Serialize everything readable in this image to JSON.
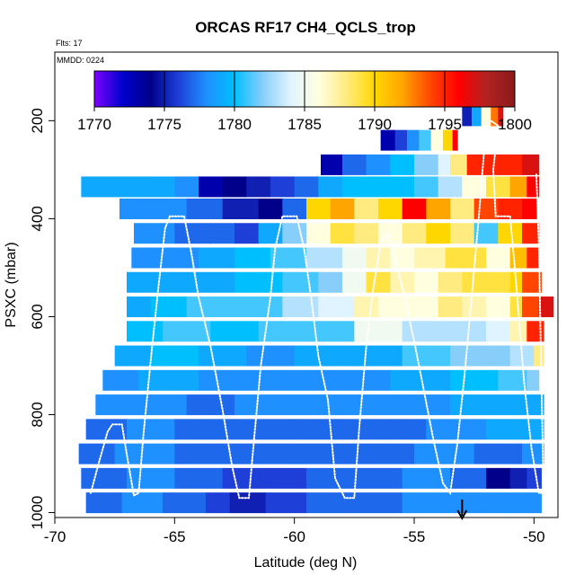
{
  "chart_data": {
    "type": "heatmap",
    "title": "ORCAS RF17 CH4_QCLS_trop",
    "subtitle_flights": "Flts: 17",
    "subtitle_date": "MMDD: 0224",
    "xlabel": "Latitude (deg N)",
    "ylabel": "PSXC (mbar)",
    "xlim": [
      -70,
      -49
    ],
    "ylim": [
      1010,
      60
    ],
    "x_ticks": [
      -70,
      -65,
      -60,
      -55,
      -50
    ],
    "x_tick_labels": [
      "-70",
      "-65",
      "-60",
      "-55",
      "-50"
    ],
    "y_ticks": [
      200,
      400,
      600,
      800,
      1000
    ],
    "y_tick_labels": [
      "200",
      "400",
      "600",
      "800",
      "1000"
    ],
    "colorbar": {
      "min": 1770,
      "max": 1800,
      "ticks": [
        1770,
        1775,
        1780,
        1785,
        1790,
        1795,
        1800
      ],
      "tick_labels": [
        "1770",
        "1775",
        "1780",
        "1785",
        "1790",
        "1795",
        "1800"
      ],
      "colors": [
        "#7F00FF",
        "#0000CD",
        "#00008B",
        "#1E3FD8",
        "#1E90FF",
        "#00BFFF",
        "#87CEFA",
        "#E0F4FF",
        "#FFFFE0",
        "#FFEB80",
        "#FFD700",
        "#FFA500",
        "#FF4500",
        "#FF0000",
        "#B22222",
        "#8B1A1A"
      ]
    },
    "bands": [
      {
        "p": 980,
        "segments": [
          [
            -68.7,
            1777
          ],
          [
            -67.2,
            1778
          ],
          [
            -65.5,
            1777
          ],
          [
            -63.7,
            1776
          ],
          [
            -62.7,
            1775
          ],
          [
            -61.2,
            1776
          ],
          [
            -59.5,
            1777
          ],
          [
            -57.7,
            1777
          ],
          [
            -55.5,
            1778
          ],
          [
            -53.0,
            1778
          ],
          [
            -51.0,
            1778
          ],
          [
            -49.7,
            1778
          ]
        ]
      },
      {
        "p": 930,
        "segments": [
          [
            -68.9,
            1777
          ],
          [
            -67.0,
            1778
          ],
          [
            -65.0,
            1777
          ],
          [
            -63.0,
            1776
          ],
          [
            -61.5,
            1776
          ],
          [
            -59.5,
            1777
          ],
          [
            -57.5,
            1777
          ],
          [
            -55.5,
            1778
          ],
          [
            -53.5,
            1777
          ],
          [
            -52.0,
            1774
          ],
          [
            -51.0,
            1775
          ],
          [
            -50.3,
            1776
          ],
          [
            -49.7,
            1776
          ]
        ]
      },
      {
        "p": 880,
        "segments": [
          [
            -69.0,
            1777
          ],
          [
            -67.5,
            1778
          ],
          [
            -65.0,
            1777
          ],
          [
            -62.5,
            1777
          ],
          [
            -60.0,
            1777
          ],
          [
            -57.5,
            1777
          ],
          [
            -55.0,
            1778
          ],
          [
            -52.5,
            1777
          ],
          [
            -50.5,
            1778
          ],
          [
            -49.6,
            1778
          ]
        ]
      },
      {
        "p": 830,
        "segments": [
          [
            -68.7,
            1777
          ],
          [
            -67.0,
            1778
          ],
          [
            -65.0,
            1777
          ],
          [
            -62.5,
            1777
          ],
          [
            -60.0,
            1777
          ],
          [
            -58.0,
            1777
          ],
          [
            -56.0,
            1777
          ],
          [
            -54.5,
            1778
          ],
          [
            -52.0,
            1779
          ],
          [
            -50.5,
            1779
          ],
          [
            -49.6,
            1779
          ]
        ]
      },
      {
        "p": 780,
        "segments": [
          [
            -68.3,
            1778
          ],
          [
            -66.5,
            1778
          ],
          [
            -64.5,
            1777
          ],
          [
            -62.5,
            1778
          ],
          [
            -60.0,
            1778
          ],
          [
            -58.0,
            1778
          ],
          [
            -56.0,
            1778
          ],
          [
            -53.5,
            1779
          ],
          [
            -51.5,
            1779
          ],
          [
            -50.3,
            1779
          ],
          [
            -49.6,
            1779
          ]
        ]
      },
      {
        "p": 730,
        "segments": [
          [
            -68.0,
            1778
          ],
          [
            -66.5,
            1779
          ],
          [
            -64.0,
            1778
          ],
          [
            -62.0,
            1778
          ],
          [
            -60.0,
            1778
          ],
          [
            -58.0,
            1778
          ],
          [
            -56.0,
            1779
          ],
          [
            -53.5,
            1780
          ],
          [
            -51.5,
            1781
          ],
          [
            -50.3,
            1782
          ],
          [
            -49.8,
            1782
          ]
        ]
      },
      {
        "p": 680,
        "segments": [
          [
            -67.5,
            1779
          ],
          [
            -66.0,
            1780
          ],
          [
            -64.0,
            1779
          ],
          [
            -62.0,
            1778
          ],
          [
            -60.0,
            1779
          ],
          [
            -57.5,
            1779
          ],
          [
            -55.5,
            1781
          ],
          [
            -53.5,
            1782
          ],
          [
            -51.0,
            1783
          ],
          [
            -50.0,
            1788
          ],
          [
            -49.6,
            1790
          ]
        ]
      },
      {
        "p": 630,
        "segments": [
          [
            -67.0,
            1780
          ],
          [
            -65.5,
            1781
          ],
          [
            -63.5,
            1780
          ],
          [
            -61.5,
            1781
          ],
          [
            -59.5,
            1781
          ],
          [
            -57.5,
            1785
          ],
          [
            -55.5,
            1783
          ],
          [
            -53.5,
            1783
          ],
          [
            -52.0,
            1784
          ],
          [
            -51.0,
            1787
          ],
          [
            -50.3,
            1795
          ],
          [
            -49.6,
            1797
          ]
        ]
      },
      {
        "p": 580,
        "segments": [
          [
            -67.0,
            1779
          ],
          [
            -66.0,
            1780
          ],
          [
            -64.5,
            1781
          ],
          [
            -62.5,
            1781
          ],
          [
            -60.5,
            1783
          ],
          [
            -59.0,
            1784
          ],
          [
            -57.5,
            1787
          ],
          [
            -56.5,
            1786
          ],
          [
            -55.0,
            1786
          ],
          [
            -54.0,
            1788
          ],
          [
            -53.0,
            1787
          ],
          [
            -52.0,
            1786
          ],
          [
            -51.0,
            1789
          ],
          [
            -50.5,
            1794
          ],
          [
            -49.8,
            1797
          ],
          [
            -49.2,
            1798
          ]
        ]
      },
      {
        "p": 530,
        "segments": [
          [
            -67.0,
            1779
          ],
          [
            -65.5,
            1779
          ],
          [
            -64.0,
            1779
          ],
          [
            -62.5,
            1780
          ],
          [
            -60.5,
            1781
          ],
          [
            -59.0,
            1782
          ],
          [
            -58.0,
            1785
          ],
          [
            -57.0,
            1789
          ],
          [
            -56.0,
            1787
          ],
          [
            -55.0,
            1786
          ],
          [
            -54.0,
            1788
          ],
          [
            -53.0,
            1789
          ],
          [
            -52.0,
            1789
          ],
          [
            -51.0,
            1790
          ],
          [
            -50.5,
            1794
          ],
          [
            -49.7,
            1797
          ]
        ]
      },
      {
        "p": 480,
        "segments": [
          [
            -66.8,
            1778
          ],
          [
            -65.5,
            1778
          ],
          [
            -64.0,
            1779
          ],
          [
            -62.5,
            1780
          ],
          [
            -61.0,
            1781
          ],
          [
            -59.5,
            1783
          ],
          [
            -58.0,
            1785
          ],
          [
            -57.0,
            1787
          ],
          [
            -56.0,
            1786
          ],
          [
            -55.0,
            1787
          ],
          [
            -53.7,
            1789
          ],
          [
            -52.0,
            1786
          ],
          [
            -51.0,
            1791
          ],
          [
            -50.3,
            1795
          ],
          [
            -49.8,
            1797
          ]
        ]
      },
      {
        "p": 430,
        "segments": [
          [
            -66.7,
            1778
          ],
          [
            -65.0,
            1777
          ],
          [
            -63.5,
            1777
          ],
          [
            -62.5,
            1776
          ],
          [
            -61.5,
            1779
          ],
          [
            -60.5,
            1782
          ],
          [
            -59.5,
            1786
          ],
          [
            -58.5,
            1789
          ],
          [
            -57.5,
            1788
          ],
          [
            -56.5,
            1786
          ],
          [
            -55.5,
            1788
          ],
          [
            -54.5,
            1790
          ],
          [
            -53.5,
            1788
          ],
          [
            -52.5,
            1781
          ],
          [
            -51.5,
            1790
          ],
          [
            -50.5,
            1795
          ],
          [
            -49.8,
            1797
          ]
        ]
      },
      {
        "p": 380,
        "segments": [
          [
            -67.3,
            1778
          ],
          [
            -66.0,
            1778
          ],
          [
            -64.5,
            1777
          ],
          [
            -63.0,
            1775
          ],
          [
            -61.5,
            1774
          ],
          [
            -60.5,
            1777
          ],
          [
            -59.5,
            1790
          ],
          [
            -58.5,
            1792
          ],
          [
            -57.5,
            1788
          ],
          [
            -56.5,
            1790
          ],
          [
            -55.5,
            1796
          ],
          [
            -54.5,
            1792
          ],
          [
            -53.5,
            1788
          ],
          [
            -52.5,
            1794
          ],
          [
            -51.5,
            1795
          ],
          [
            -50.5,
            1796
          ],
          [
            -49.9,
            1797
          ]
        ]
      },
      {
        "p": 335,
        "segments": [
          [
            -68.9,
            1779
          ],
          [
            -68.0,
            1779
          ],
          [
            -66.5,
            1779
          ],
          [
            -65.0,
            1778
          ],
          [
            -64.0,
            1773
          ],
          [
            -63.0,
            1774
          ],
          [
            -62.0,
            1775
          ],
          [
            -61.0,
            1776
          ],
          [
            -60.0,
            1777
          ],
          [
            -59.0,
            1779
          ],
          [
            -58.0,
            1780
          ],
          [
            -57.0,
            1780
          ],
          [
            -56.0,
            1780
          ],
          [
            -55.0,
            1781
          ],
          [
            -54.0,
            1783
          ],
          [
            -53.0,
            1786
          ],
          [
            -52.0,
            1789
          ],
          [
            -51.0,
            1792
          ],
          [
            -50.3,
            1796
          ],
          [
            -49.8,
            1798
          ]
        ]
      },
      {
        "p": 290,
        "segments": [
          [
            -58.9,
            1773
          ],
          [
            -58.0,
            1777
          ],
          [
            -57.0,
            1778
          ],
          [
            -56.0,
            1780
          ],
          [
            -55.0,
            1782
          ],
          [
            -54.0,
            1784
          ],
          [
            -53.5,
            1788
          ],
          [
            -52.8,
            1795
          ],
          [
            -50.5,
            1797
          ],
          [
            -49.8,
            1799
          ]
        ]
      },
      {
        "p": 240,
        "segments": [
          [
            -56.4,
            1773
          ],
          [
            -55.8,
            1776
          ],
          [
            -55.3,
            1778
          ],
          [
            -54.8,
            1781
          ],
          [
            -54.3,
            1786
          ],
          [
            -53.8,
            1790
          ],
          [
            -53.4,
            1796
          ],
          [
            -53.2,
            1796
          ]
        ]
      },
      {
        "p": 190,
        "segments": [
          [
            -53.0,
            1775
          ],
          [
            -52.6,
            1779
          ],
          [
            -52.2,
            1786
          ],
          [
            -51.8,
            1793
          ],
          [
            -51.5,
            1797
          ],
          [
            -51.3,
            1797
          ]
        ]
      }
    ],
    "flight_track": [
      [
        -68.5,
        960
      ],
      [
        -68.2,
        905
      ],
      [
        -67.8,
        835
      ],
      [
        -67.6,
        820
      ],
      [
        -67.2,
        820
      ],
      [
        -67.0,
        880
      ],
      [
        -66.7,
        965
      ],
      [
        -66.5,
        960
      ],
      [
        -66.3,
        840
      ],
      [
        -66.0,
        690
      ],
      [
        -65.7,
        550
      ],
      [
        -65.4,
        420
      ],
      [
        -65.2,
        395
      ],
      [
        -64.6,
        395
      ],
      [
        -64.3,
        470
      ],
      [
        -64.0,
        560
      ],
      [
        -63.5,
        660
      ],
      [
        -63.0,
        790
      ],
      [
        -62.6,
        905
      ],
      [
        -62.3,
        970
      ],
      [
        -61.9,
        970
      ],
      [
        -61.7,
        860
      ],
      [
        -61.4,
        700
      ],
      [
        -61.0,
        560
      ],
      [
        -60.8,
        460
      ],
      [
        -60.5,
        395
      ],
      [
        -59.9,
        395
      ],
      [
        -59.6,
        460
      ],
      [
        -59.3,
        560
      ],
      [
        -59.0,
        680
      ],
      [
        -58.6,
        770
      ],
      [
        -58.3,
        930
      ],
      [
        -57.9,
        970
      ],
      [
        -57.5,
        970
      ],
      [
        -57.3,
        830
      ],
      [
        -57.0,
        660
      ],
      [
        -56.7,
        540
      ],
      [
        -56.4,
        450
      ],
      [
        -56.1,
        430
      ],
      [
        -55.8,
        480
      ],
      [
        -55.4,
        560
      ],
      [
        -55.0,
        650
      ],
      [
        -54.6,
        750
      ],
      [
        -54.2,
        850
      ],
      [
        -53.8,
        940
      ],
      [
        -53.5,
        960
      ],
      [
        -53.2,
        860
      ],
      [
        -52.9,
        720
      ],
      [
        -52.6,
        560
      ],
      [
        -52.3,
        395
      ],
      [
        -52.0,
        210
      ],
      [
        -51.8,
        200
      ],
      [
        -51.5,
        210
      ],
      [
        -51.7,
        300
      ],
      [
        -51.6,
        395
      ],
      [
        -51.0,
        395
      ],
      [
        -50.8,
        500
      ],
      [
        -50.6,
        620
      ],
      [
        -50.4,
        740
      ],
      [
        -50.1,
        870
      ],
      [
        -49.8,
        960
      ],
      [
        -49.6,
        960
      ],
      [
        -49.7,
        700
      ],
      [
        -49.8,
        450
      ],
      [
        -49.9,
        310
      ]
    ],
    "marker": {
      "x": -53.0,
      "p": 1010,
      "label": "arrow"
    }
  }
}
